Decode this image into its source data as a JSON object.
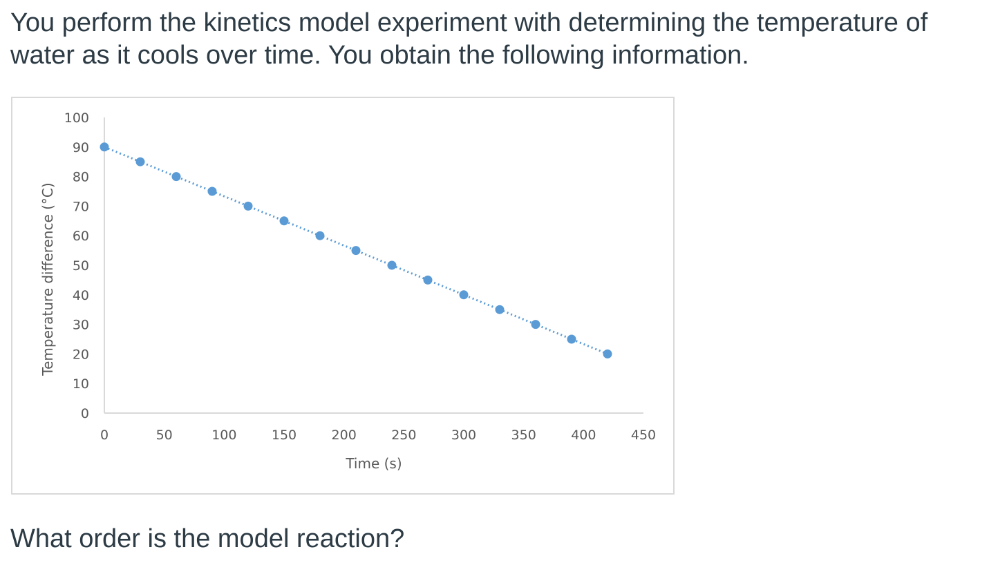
{
  "problem": {
    "intro": "You perform the kinetics model experiment with determining the temperature of water as it cools over time. You obtain the following information.",
    "question": "What order is the model reaction?"
  },
  "chart_data": {
    "type": "scatter",
    "title": "",
    "xlabel": "Time (s)",
    "ylabel": "Temperature difference (°C)",
    "xlim": [
      0,
      450
    ],
    "ylim": [
      0,
      100
    ],
    "xticks": [
      0,
      50,
      100,
      150,
      200,
      250,
      300,
      350,
      400,
      450
    ],
    "yticks": [
      0,
      10,
      20,
      30,
      40,
      50,
      60,
      70,
      80,
      90,
      100
    ],
    "x": [
      0,
      30,
      60,
      90,
      120,
      150,
      180,
      210,
      240,
      270,
      300,
      330,
      360,
      390,
      420
    ],
    "y": [
      90,
      85,
      80,
      75,
      70,
      65,
      60,
      55,
      50,
      45,
      40,
      35,
      30,
      25,
      20
    ],
    "trendline": "linear, dotted",
    "grid": false,
    "legend": "none",
    "colors": {
      "marker": "#5b9bd5",
      "trendline": "#5b9bd5",
      "axis": "#d9d9d9",
      "tick_text": "#595959",
      "frame": "#d9d9d9",
      "text": "#2d3b45"
    }
  }
}
